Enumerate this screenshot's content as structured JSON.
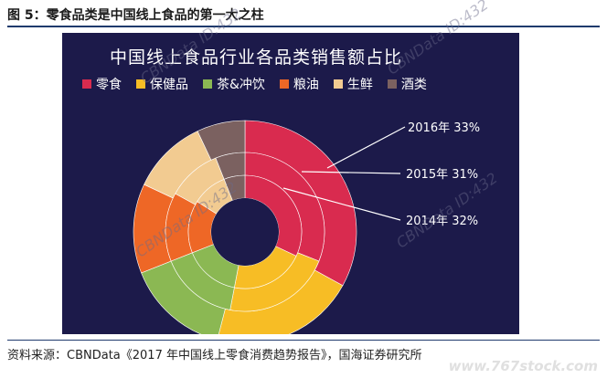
{
  "figure_title": "图 5：零食品类是中国线上食品的第一大之柱",
  "source_note": "资料来源：CBNData《2017 年中国线上零食消费趋势报告》，国海证券研究所",
  "watermarks": [
    "CBNData ID:432",
    "CBNData ID:432",
    "CBNData ID:432",
    "CBNData ID:432"
  ],
  "site_watermark": "www.767stock.com",
  "chart_data": {
    "type": "pie",
    "subtype": "nested-donut",
    "title": "中国线上食品行业各品类销售额占比",
    "categories": [
      "零食",
      "保健品",
      "茶&冲饮",
      "粮油",
      "生鲜",
      "酒类"
    ],
    "colors": [
      "#d92b4f",
      "#f7bd25",
      "#8bb853",
      "#ee6726",
      "#f2cb91",
      "#7b6160"
    ],
    "series": [
      {
        "name": "2016年",
        "values": [
          33,
          21,
          15,
          13,
          11,
          7
        ]
      },
      {
        "name": "2015年",
        "values": [
          31,
          22,
          16,
          14,
          11,
          6
        ]
      },
      {
        "name": "2014年",
        "values": [
          32,
          21,
          16,
          15,
          10,
          6
        ]
      }
    ],
    "annotations": [
      "2016年  33%",
      "2015年  31%",
      "2014年  32%"
    ],
    "legend_position": "top"
  }
}
